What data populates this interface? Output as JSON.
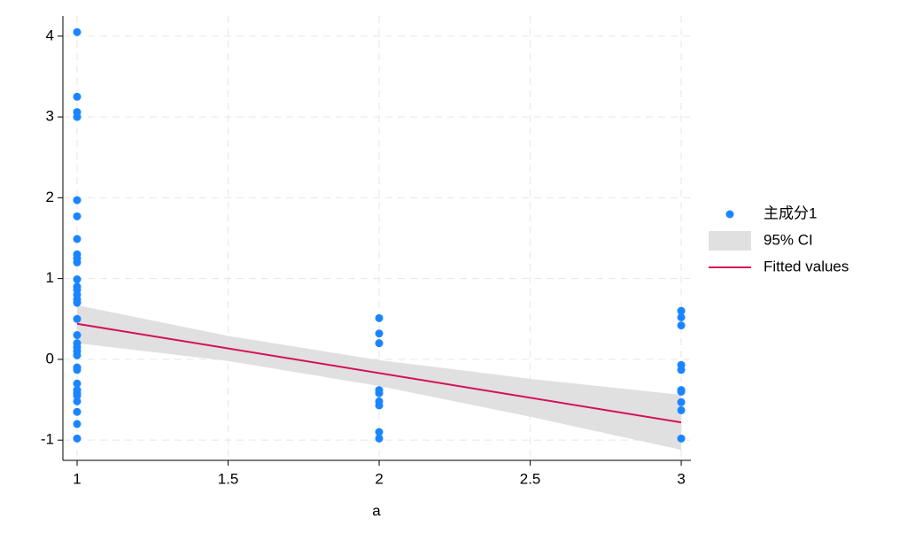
{
  "chart_data": {
    "type": "scatter",
    "x_label": "a",
    "xlim": [
      0.953,
      3.032
    ],
    "ylim": [
      -1.25,
      4.25
    ],
    "xticks": [
      1,
      1.5,
      2,
      2.5,
      3
    ],
    "yticks": [
      -1,
      0,
      1,
      2,
      3,
      4
    ],
    "grid": true,
    "legend": "right",
    "series": [
      {
        "name": "主成分1",
        "type": "scatter",
        "color": "#1a85ff",
        "x": [
          1,
          1,
          1,
          1,
          1,
          1,
          1,
          1,
          1,
          1,
          1,
          1,
          1,
          1,
          1,
          1,
          1,
          1,
          1,
          1,
          1,
          1,
          1,
          1,
          1,
          1,
          1,
          1,
          1,
          1,
          1,
          1,
          2,
          2,
          2,
          2,
          2,
          2,
          2,
          2,
          2,
          3,
          3,
          3,
          3,
          3,
          3,
          3,
          3,
          3,
          3
        ],
        "values": [
          4.05,
          3.25,
          3.06,
          3.0,
          1.97,
          1.77,
          1.49,
          1.3,
          1.25,
          1.2,
          0.99,
          0.9,
          0.86,
          0.8,
          0.74,
          0.7,
          0.5,
          0.3,
          0.2,
          0.15,
          0.1,
          0.05,
          -0.1,
          -0.13,
          -0.3,
          -0.38,
          -0.42,
          -0.45,
          -0.52,
          -0.65,
          -0.8,
          -0.98,
          0.51,
          0.32,
          0.2,
          -0.38,
          -0.42,
          -0.52,
          -0.57,
          -0.9,
          -0.98,
          0.6,
          0.52,
          0.42,
          -0.07,
          -0.13,
          -0.38,
          -0.4,
          -0.53,
          -0.63,
          -0.98
        ]
      },
      {
        "name": "95% CI",
        "type": "band",
        "color": "#e0e0e0",
        "x": [
          1,
          1.5,
          2,
          2.5,
          3
        ],
        "upper": [
          0.67,
          0.29,
          -0.01,
          -0.24,
          -0.44
        ],
        "lower": [
          0.2,
          -0.02,
          -0.33,
          -0.71,
          -1.12
        ]
      },
      {
        "name": "Fitted values",
        "type": "line",
        "color": "#d41159",
        "x": [
          1,
          3
        ],
        "values": [
          0.44,
          -0.78
        ]
      }
    ]
  }
}
